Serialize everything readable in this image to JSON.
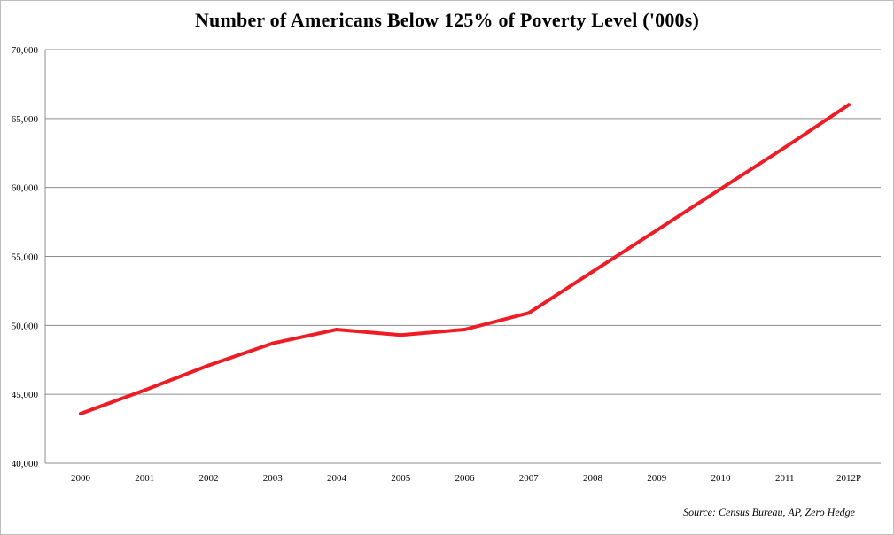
{
  "chart_data": {
    "type": "line",
    "title": "Number of Americans Below 125% of Poverty Level ('000s)",
    "xlabel": "",
    "ylabel": "",
    "categories": [
      "2000",
      "2001",
      "2002",
      "2003",
      "2004",
      "2005",
      "2006",
      "2007",
      "2008",
      "2009",
      "2010",
      "2011",
      "2012P"
    ],
    "series": [
      {
        "values": [
          43600,
          45300,
          47100,
          48700,
          49700,
          49300,
          49700,
          50900,
          53900,
          56900,
          59900,
          62900,
          66000
        ]
      }
    ],
    "ylim": [
      40000,
      70000
    ],
    "yticks": [
      "40,000",
      "45,000",
      "50,000",
      "55,000",
      "60,000",
      "65,000",
      "70,000"
    ],
    "ytick_values": [
      40000,
      45000,
      50000,
      55000,
      60000,
      65000,
      70000
    ],
    "grid": "horizontal",
    "legend": "none",
    "line_color": "#ee1c25",
    "grid_color": "#8c8c8c",
    "source": "Source: Census Bureau, AP, Zero Hedge"
  }
}
